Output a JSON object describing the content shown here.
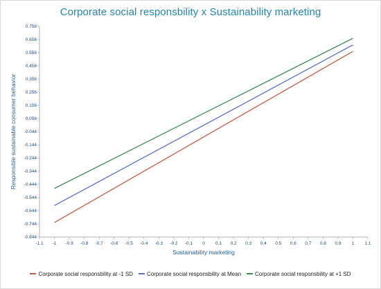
{
  "chart_data": {
    "type": "line",
    "title": "Corporate social responsbility x Sustainability marketing",
    "xlabel": "Sustainability marketing",
    "ylabel": "Responsible sustainable consumer behavior",
    "xlim": [
      -1.1,
      1.1
    ],
    "ylim": [
      -0.844,
      0.756
    ],
    "x_ticks": [
      "-1.1",
      "-1",
      "-0.9",
      "-0.8",
      "-0.7",
      "-0.6",
      "-0.5",
      "-0.4",
      "-0.3",
      "-0.2",
      "-0.1",
      "0",
      "0.1",
      "0.2",
      "0.3",
      "0.4",
      "0.5",
      "0.6",
      "0.7",
      "0.8",
      "0.9",
      "1",
      "1.1"
    ],
    "y_ticks": [
      "0.756",
      "0.656",
      "0.556",
      "0.456",
      "0.356",
      "0.256",
      "0.156",
      "0.056",
      "-0.044",
      "-0.144",
      "-0.244",
      "-0.344",
      "-0.444",
      "-0.544",
      "-0.644",
      "-0.744",
      "-0.844"
    ],
    "x": [
      -1,
      1
    ],
    "series": [
      {
        "name": "Corporate social responsbility at -1 SD",
        "values": [
          -0.734,
          0.566
        ],
        "color": "#cc5a43"
      },
      {
        "name": "Corporate social responsbility at Mean",
        "values": [
          -0.605,
          0.615
        ],
        "color": "#5a6fcf"
      },
      {
        "name": "Corporate social responsbility at +1 SD",
        "values": [
          -0.475,
          0.665
        ],
        "color": "#3e8a52"
      }
    ],
    "grid": false,
    "legend_position": "bottom"
  }
}
